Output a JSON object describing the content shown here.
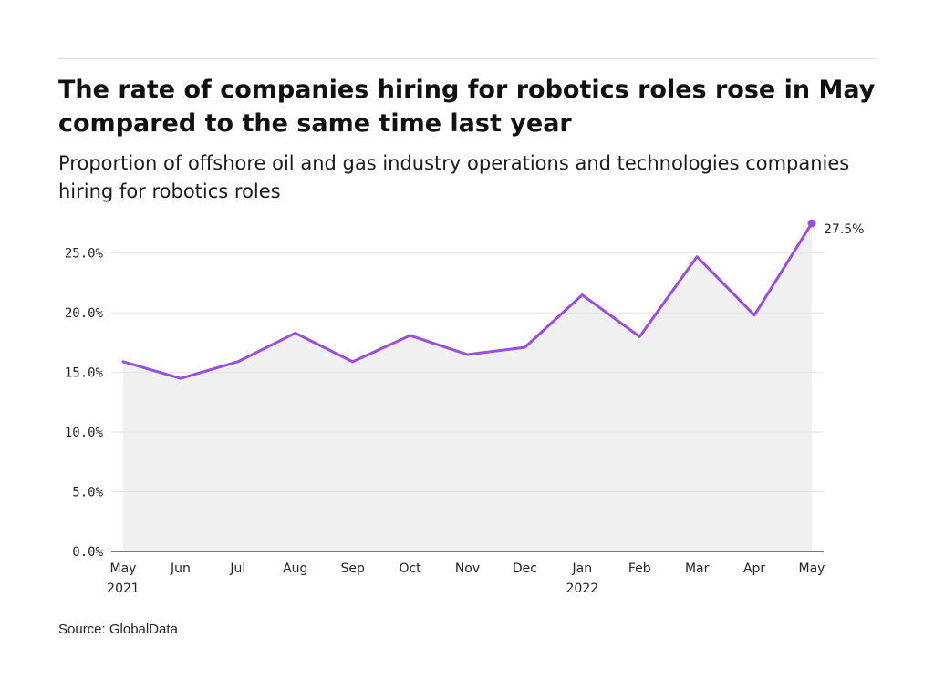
{
  "page": {
    "title": "The rate of companies hiring for robotics roles rose in May compared to the same time last year",
    "subtitle": "Proportion of offshore oil and gas industry operations and technologies companies hiring for robotics roles",
    "source": "Source: GlobalData"
  },
  "colors": {
    "line": "#9b4ddb",
    "area": "#f0f0f0",
    "grid": "#e4e4e4",
    "axis": "#222222"
  },
  "chart_data": {
    "type": "area",
    "title": "The rate of companies hiring for robotics roles rose in May compared to the same time last year",
    "subtitle": "Proportion of offshore oil and gas industry operations and technologies companies hiring for robotics roles",
    "x": [
      "2021-05",
      "2021-06",
      "2021-07",
      "2021-08",
      "2021-09",
      "2021-10",
      "2021-11",
      "2021-12",
      "2022-01",
      "2022-02",
      "2022-03",
      "2022-04",
      "2022-05"
    ],
    "tick_labels": [
      {
        "month": "May",
        "year": "2021"
      },
      {
        "month": "Jun",
        "year": ""
      },
      {
        "month": "Jul",
        "year": ""
      },
      {
        "month": "Aug",
        "year": ""
      },
      {
        "month": "Sep",
        "year": ""
      },
      {
        "month": "Oct",
        "year": ""
      },
      {
        "month": "Nov",
        "year": ""
      },
      {
        "month": "Dec",
        "year": ""
      },
      {
        "month": "Jan",
        "year": "2022"
      },
      {
        "month": "Feb",
        "year": ""
      },
      {
        "month": "Mar",
        "year": ""
      },
      {
        "month": "Apr",
        "year": ""
      },
      {
        "month": "May",
        "year": ""
      }
    ],
    "series": [
      {
        "values": [
          15.9,
          14.5,
          15.9,
          18.3,
          15.9,
          18.1,
          16.5,
          17.1,
          21.5,
          18.0,
          24.7,
          19.8,
          27.5
        ]
      }
    ],
    "y_ticks": [
      {
        "value": 0,
        "label": "0.0%"
      },
      {
        "value": 5,
        "label": "5.0%"
      },
      {
        "value": 10,
        "label": "10.0%"
      },
      {
        "value": 15,
        "label": "15.0%"
      },
      {
        "value": 20,
        "label": "20.0%"
      },
      {
        "value": 25,
        "label": "25.0%"
      }
    ],
    "ylim": [
      0,
      27.5
    ],
    "xlabel": "",
    "ylabel": "",
    "grid": true,
    "annotation": {
      "index": 12,
      "label": "27.5%"
    }
  }
}
